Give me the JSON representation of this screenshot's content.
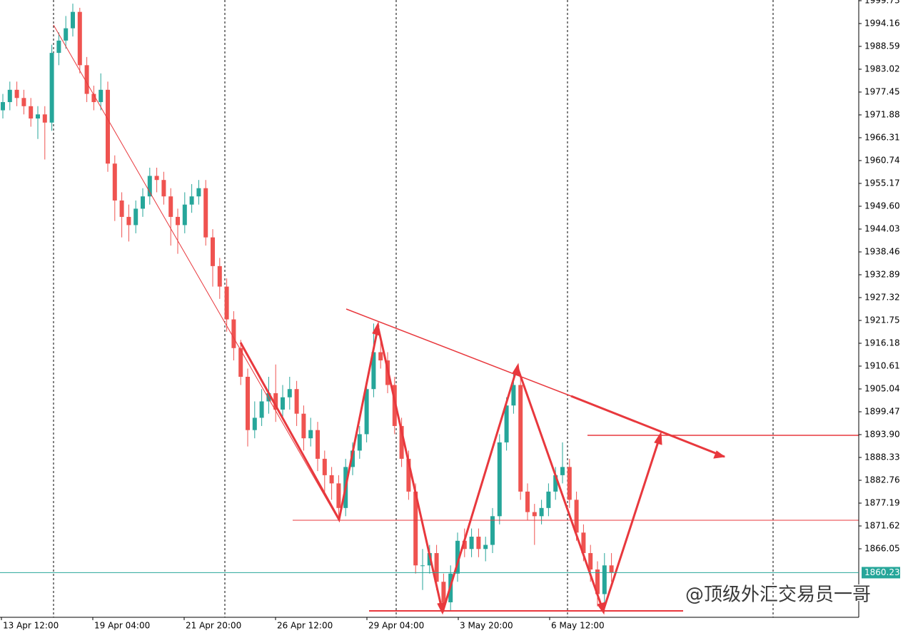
{
  "chart_data": {
    "type": "candlestick",
    "x_labels": [
      "13 Apr 12:00",
      "19 Apr 04:00",
      "21 Apr 20:00",
      "26 Apr 12:00",
      "29 Apr 04:00",
      "3 May 20:00",
      "6 May 12:00"
    ],
    "open": [
      1973,
      1975,
      1978,
      1976,
      1974,
      1971,
      1972,
      1970,
      1987,
      1990,
      1993,
      1997,
      1984,
      1977,
      1975,
      1978,
      1960,
      1951,
      1947,
      1945,
      1949,
      1952,
      1957,
      1956,
      1952,
      1947,
      1945,
      1950,
      1952,
      1954,
      1942,
      1935,
      1930,
      1922,
      1915,
      1908,
      1895,
      1898,
      1902,
      1904,
      1900,
      1903,
      1905,
      1899,
      1893,
      1895,
      1888,
      1884,
      1882,
      1876,
      1886,
      1890,
      1894,
      1905,
      1914,
      1912,
      1906,
      1896,
      1888,
      1880,
      1862,
      1862,
      1865,
      1858,
      1853,
      1860,
      1868,
      1866,
      1869,
      1866,
      1867,
      1874,
      1892,
      1901,
      1906,
      1880,
      1875,
      1874,
      1876,
      1880,
      1884,
      1886,
      1878,
      1870,
      1865,
      1861,
      1855,
      1862
    ],
    "high": [
      1977,
      1980,
      1980,
      1978,
      1976,
      1974,
      1974,
      1989,
      1992,
      1996,
      1999,
      1998,
      1986,
      1979,
      1982,
      1980,
      1962,
      1953,
      1950,
      1951,
      1954,
      1959,
      1959,
      1958,
      1954,
      1949,
      1953,
      1955,
      1956,
      1956,
      1944,
      1937,
      1932,
      1924,
      1917,
      1910,
      1902,
      1905,
      1908,
      1911,
      1906,
      1908,
      1907,
      1901,
      1898,
      1897,
      1890,
      1886,
      1884,
      1888,
      1892,
      1896,
      1907,
      1921,
      1918,
      1914,
      1908,
      1898,
      1890,
      1882,
      1866,
      1867,
      1867,
      1860,
      1862,
      1870,
      1871,
      1871,
      1871,
      1869,
      1876,
      1894,
      1903,
      1909,
      1908,
      1882,
      1877,
      1878,
      1882,
      1886,
      1892,
      1888,
      1880,
      1872,
      1867,
      1863,
      1865,
      1865
    ],
    "low": [
      1971,
      1973,
      1974,
      1972,
      1969,
      1966,
      1961,
      1968,
      1984,
      1988,
      1991,
      1982,
      1975,
      1973,
      1973,
      1958,
      1946,
      1942,
      1941,
      1943,
      1947,
      1950,
      1953,
      1950,
      1940,
      1938,
      1943,
      1948,
      1950,
      1940,
      1930,
      1927,
      1919,
      1912,
      1906,
      1891,
      1893,
      1896,
      1899,
      1897,
      1898,
      1900,
      1896,
      1890,
      1891,
      1885,
      1880,
      1878,
      1874,
      1874,
      1884,
      1888,
      1892,
      1903,
      1910,
      1904,
      1894,
      1886,
      1878,
      1860,
      1856,
      1860,
      1856,
      1851,
      1851,
      1858,
      1864,
      1864,
      1864,
      1863,
      1865,
      1872,
      1890,
      1899,
      1878,
      1873,
      1867,
      1872,
      1874,
      1878,
      1882,
      1876,
      1868,
      1863,
      1858,
      1852,
      1853,
      1858
    ],
    "close": [
      1975,
      1978,
      1976,
      1974,
      1971,
      1972,
      1970,
      1987,
      1990,
      1993,
      1997,
      1984,
      1977,
      1975,
      1978,
      1960,
      1951,
      1947,
      1945,
      1949,
      1952,
      1957,
      1956,
      1952,
      1947,
      1945,
      1950,
      1952,
      1954,
      1942,
      1935,
      1930,
      1922,
      1915,
      1908,
      1895,
      1898,
      1902,
      1904,
      1900,
      1903,
      1905,
      1899,
      1893,
      1895,
      1888,
      1884,
      1882,
      1876,
      1886,
      1890,
      1894,
      1905,
      1914,
      1912,
      1906,
      1896,
      1888,
      1880,
      1862,
      1862,
      1865,
      1858,
      1853,
      1860,
      1868,
      1866,
      1869,
      1866,
      1867,
      1874,
      1892,
      1901,
      1906,
      1880,
      1875,
      1874,
      1876,
      1880,
      1884,
      1886,
      1878,
      1870,
      1865,
      1861,
      1855,
      1862,
      1860.23
    ],
    "up_color": "#26a69a",
    "down_color": "#ef5350",
    "last_price": 1860.23,
    "ylim": [
      1849.34,
      1999.9
    ],
    "yticks": [
      1999.73,
      1994.16,
      1988.59,
      1983.02,
      1977.45,
      1971.88,
      1966.31,
      1960.74,
      1955.17,
      {
        "value": 1949.6,
        "label": "1949.60"
      },
      1944.03,
      1938.46,
      1932.89,
      1927.32,
      1921.75,
      1916.18,
      1910.61,
      1905.04,
      1899.47,
      {
        "value": 1893.9,
        "label": "1893.90"
      },
      1888.33,
      1882.76,
      1877.19,
      1871.62,
      1866.05
    ],
    "watermark": "@顶级外汇交易员一哥"
  }
}
